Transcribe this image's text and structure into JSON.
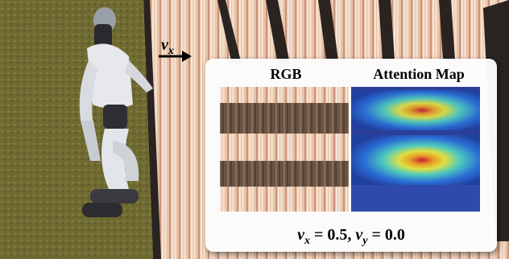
{
  "arrow_label": {
    "symbol": "v",
    "subscript": "x"
  },
  "panel": {
    "left_title": "RGB",
    "right_title": "Attention Map",
    "caption": [
      {
        "symbol": "v",
        "subscript": "x",
        "rest": " = 0.5, "
      },
      {
        "symbol": "v",
        "subscript": "y",
        "rest": " = 0.0"
      }
    ]
  }
}
